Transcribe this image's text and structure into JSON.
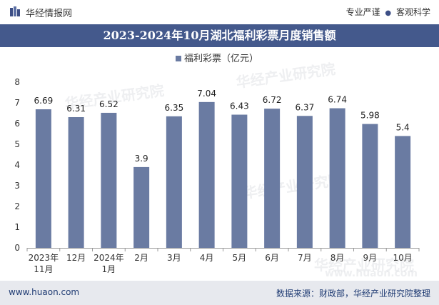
{
  "header": {
    "brand": "华经情报网",
    "tag_1": "专业严谨",
    "tag_2": "客观科学",
    "separator": "●"
  },
  "title": "2023-2024年10月湖北福利彩票月度销售额",
  "footer": {
    "website": "www.huaon.com",
    "source": "数据来源：财政部，华经产业研究院整理"
  },
  "watermarks": [
    "华经产业研究院",
    "www.huaon.com"
  ],
  "colors": {
    "bar": "#6a7ba2",
    "title_band": "#44598c",
    "footer_band": "#e7e9ee"
  },
  "chart_data": {
    "type": "bar",
    "categories": [
      "2023年\n11月",
      "12月",
      "2024年\n1月",
      "2月",
      "3月",
      "4月",
      "5月",
      "6月",
      "7月",
      "8月",
      "9月",
      "10月"
    ],
    "series": [
      {
        "name": "福利彩票（亿元）",
        "values": [
          6.69,
          6.31,
          6.52,
          3.9,
          6.35,
          7.04,
          6.43,
          6.72,
          6.37,
          6.74,
          5.98,
          5.4
        ]
      }
    ],
    "data_labels": [
      "6.69",
      "6.31",
      "6.52",
      "3.9",
      "6.35",
      "7.04",
      "6.43",
      "6.72",
      "6.37",
      "6.74",
      "5.98",
      "5.4"
    ],
    "yticks": [
      0,
      1,
      2,
      3,
      4,
      5,
      6,
      7,
      8
    ],
    "ylim": [
      0,
      8
    ],
    "legend_position": "top-center",
    "grid": false
  }
}
